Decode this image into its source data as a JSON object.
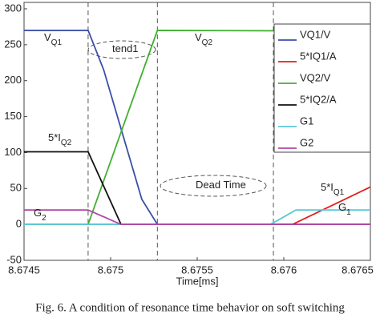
{
  "chart_data": {
    "type": "line",
    "xlabel": "Time[ms]",
    "caption": "Fig. 6. A condition of resonance time behavior on soft switching",
    "xlim": [
      8.6745,
      8.6765
    ],
    "xticks": [
      8.6745,
      8.675,
      8.6755,
      8.676,
      8.6765
    ],
    "ylim": [
      -50,
      300
    ],
    "yticks": [
      -50,
      0,
      50,
      100,
      150,
      200,
      250,
      300
    ],
    "vlines": [
      8.67487,
      8.67527,
      8.67594
    ],
    "series": [
      {
        "name": "VQ1/V",
        "color": "#3a4fa8",
        "x": [
          8.6745,
          8.67487,
          8.67496,
          8.67518,
          8.67527,
          8.6765
        ],
        "values": [
          270,
          270,
          215,
          35,
          0,
          0
        ]
      },
      {
        "name": "5*IQ1/A",
        "color": "#e0201a",
        "x": [
          8.6745,
          8.67605,
          8.6765
        ],
        "values": [
          0,
          0,
          52
        ]
      },
      {
        "name": "VQ2/V",
        "color": "#40b030",
        "x": [
          8.6745,
          8.67487,
          8.67527,
          8.6765
        ],
        "values": [
          0,
          0,
          270,
          269
        ]
      },
      {
        "name": "5*IQ2/A",
        "color": "#111111",
        "x": [
          8.6745,
          8.67487,
          8.67506,
          8.6765
        ],
        "values": [
          101,
          101,
          0,
          0
        ]
      },
      {
        "name": "G1",
        "color": "#5cc8d8",
        "x": [
          8.6745,
          8.67592,
          8.67596,
          8.67607,
          8.6765
        ],
        "values": [
          0,
          0,
          5,
          20,
          20
        ]
      },
      {
        "name": "G2",
        "color": "#b048a8",
        "x": [
          8.6745,
          8.67487,
          8.67506,
          8.6765
        ],
        "values": [
          20,
          20,
          0,
          0
        ]
      }
    ],
    "annotations": [
      {
        "text": "V",
        "sub": "Q1"
      },
      {
        "text": "tend1"
      },
      {
        "text": "V",
        "sub": "Q2"
      },
      {
        "text": "5*I",
        "sub": "Q2"
      },
      {
        "text": "G",
        "sub": "2"
      },
      {
        "text": "Dead Time"
      },
      {
        "text": "5*I",
        "sub": "Q1"
      },
      {
        "text": "G",
        "sub": "1"
      }
    ]
  }
}
